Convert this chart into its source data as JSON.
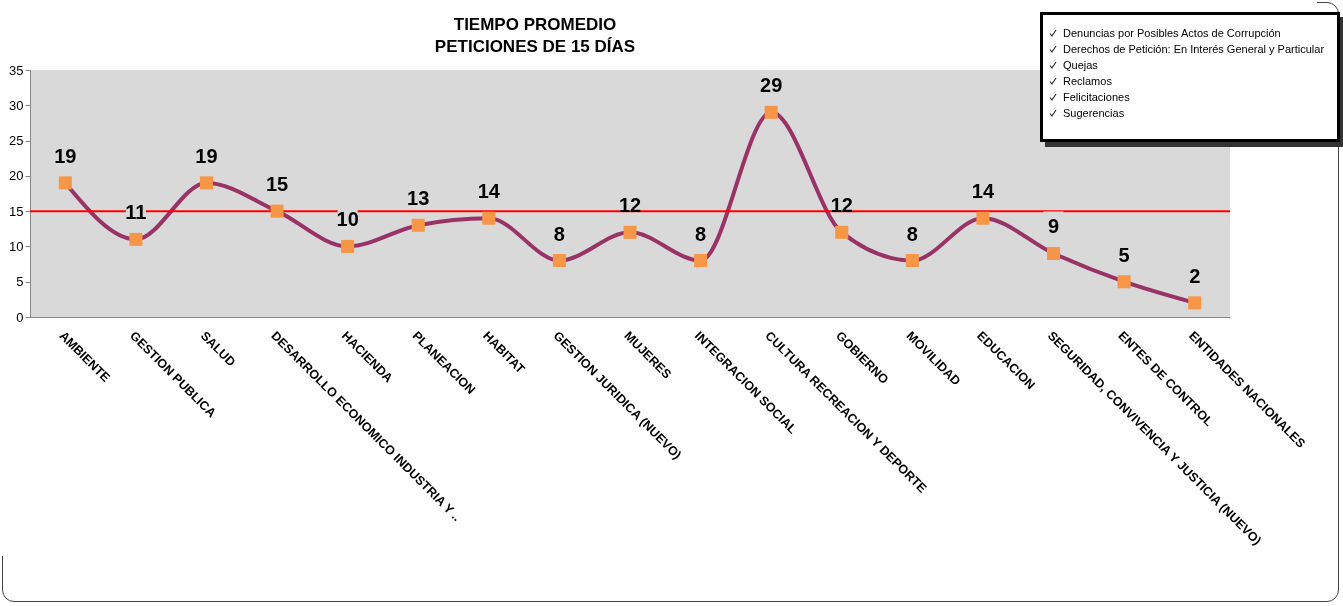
{
  "chart_data": {
    "type": "line",
    "title": "TIEMPO PROMEDIO\nPETICIONES DE 15 DÍAS",
    "categories": [
      "AMBIENTE",
      "GESTION PUBLICA",
      "SALUD",
      "DESARROLLO ECONOMICO INDUSTRIA Y ..",
      "HACIENDA",
      "PLANEACION",
      "HABITAT",
      "GESTION JURIDICA (NUEVO)",
      "MUJERES",
      "INTEGRACION SOCIAL",
      "CULTURA RECREACION Y DEPORTE",
      "GOBIERNO",
      "MOVILIDAD",
      "EDUCACION",
      "SEGURIDAD, CONVIVENCIA Y  JUSTICIA (NUEVO)",
      "ENTES DE CONTROL",
      "ENTIDADES NACIONALES"
    ],
    "series": [
      {
        "color": "#993366",
        "colors": [
          "#f79646",
          "#f79646",
          "#f79646",
          "#f79646",
          "#f79646",
          "#f79646",
          "#f79646",
          "#f79646",
          "#f79646",
          "#f79646",
          "#f79646",
          "#f79646",
          "#f79646",
          "#f79646",
          "#f79646",
          "#f79646",
          "#f79646"
        ],
        "values": [
          19,
          11,
          19,
          15,
          10,
          13,
          14,
          8,
          12,
          8,
          29,
          12,
          8,
          14,
          9,
          5,
          2
        ]
      }
    ],
    "ylim": [
      0,
      35
    ],
    "yticks": [
      0,
      5,
      10,
      15,
      20,
      25,
      30,
      35
    ],
    "grid": false,
    "marker": "square",
    "line_style": "solid",
    "data_labels": true,
    "ref_lines": [
      {
        "axis": "y",
        "value": 15,
        "color": "#ff0000"
      }
    ],
    "annotations": [
      "Denuncias por Posibles Actos de Corrupción",
      "Derechos de Petición: En Interés General y Particular",
      "Quejas",
      "Reclamos",
      "Felicitaciones",
      "Sugerencias"
    ]
  }
}
